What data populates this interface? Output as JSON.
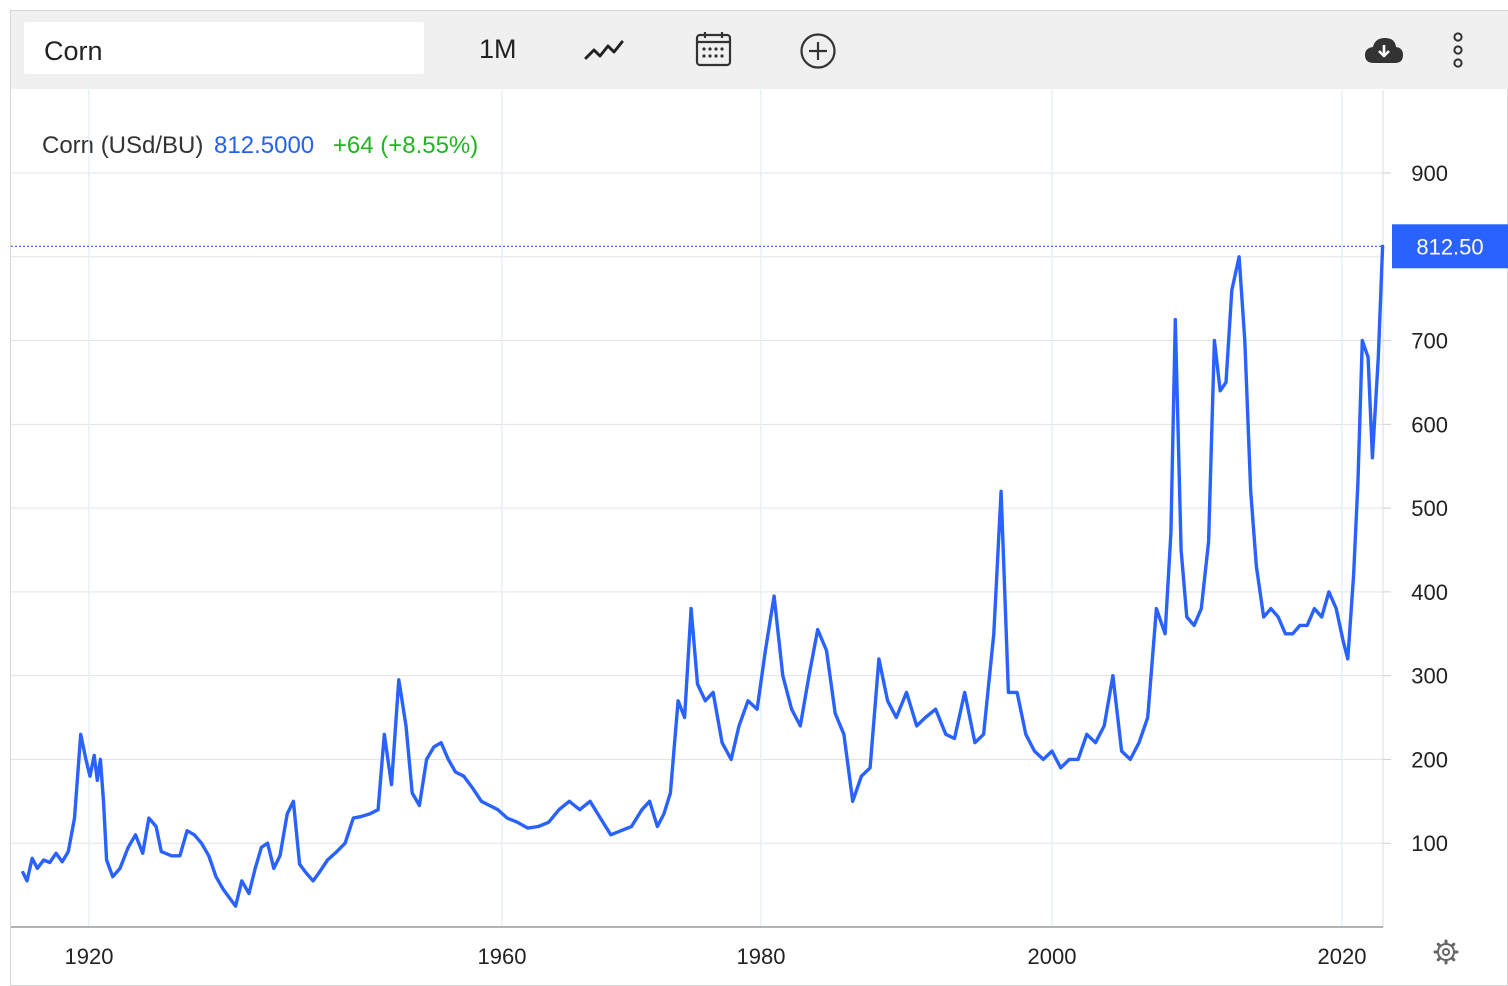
{
  "toolbar": {
    "symbol": "Corn",
    "period": "1M",
    "icons": [
      "line-chart-icon",
      "calendar-icon",
      "plus-circle-icon",
      "cloud-download-icon",
      "more-vertical-icon"
    ]
  },
  "legend": {
    "name": "Corn (USd/BU)",
    "price": "812.5000",
    "change": "+64 (+8.55%)"
  },
  "colors": {
    "line": "#2962ff",
    "change_positive": "#22b521",
    "price_badge": "#2962ff"
  },
  "chart_data": {
    "type": "line",
    "title": "",
    "xlabel": "",
    "ylabel": "",
    "x_ticks": [
      "1920",
      "1960",
      "1980",
      "2000",
      "2020"
    ],
    "y_ticks": [
      "100",
      "200",
      "300",
      "400",
      "500",
      "600",
      "700",
      "900"
    ],
    "last_price_label": "812.50",
    "last_price": 812.5,
    "grid": true,
    "series": [
      {
        "points": [
          [
            1913.6,
            65
          ],
          [
            1914.0,
            55
          ],
          [
            1914.5,
            82
          ],
          [
            1915.0,
            70
          ],
          [
            1915.6,
            80
          ],
          [
            1916.2,
            77
          ],
          [
            1916.8,
            88
          ],
          [
            1917.4,
            78
          ],
          [
            1918.0,
            90
          ],
          [
            1918.6,
            130
          ],
          [
            1919.2,
            230
          ],
          [
            1919.7,
            200
          ],
          [
            1920.1,
            180
          ],
          [
            1920.5,
            205
          ],
          [
            1920.8,
            175
          ],
          [
            1921.1,
            200
          ],
          [
            1921.4,
            150
          ],
          [
            1921.7,
            80
          ],
          [
            1922.3,
            60
          ],
          [
            1923.0,
            70
          ],
          [
            1923.8,
            95
          ],
          [
            1924.5,
            110
          ],
          [
            1925.2,
            88
          ],
          [
            1925.8,
            130
          ],
          [
            1926.5,
            120
          ],
          [
            1927.0,
            90
          ],
          [
            1928.0,
            85
          ],
          [
            1928.8,
            85
          ],
          [
            1929.5,
            115
          ],
          [
            1930.2,
            110
          ],
          [
            1930.9,
            100
          ],
          [
            1931.6,
            85
          ],
          [
            1932.3,
            60
          ],
          [
            1933.0,
            45
          ],
          [
            1933.6,
            35
          ],
          [
            1934.2,
            25
          ],
          [
            1934.8,
            55
          ],
          [
            1935.5,
            40
          ],
          [
            1936.1,
            70
          ],
          [
            1936.7,
            95
          ],
          [
            1937.3,
            100
          ],
          [
            1937.9,
            70
          ],
          [
            1938.5,
            85
          ],
          [
            1939.2,
            135
          ],
          [
            1939.8,
            150
          ],
          [
            1940.4,
            75
          ],
          [
            1941.0,
            65
          ],
          [
            1941.7,
            55
          ],
          [
            1942.3,
            65
          ],
          [
            1943.1,
            80
          ],
          [
            1944.0,
            90
          ],
          [
            1944.8,
            100
          ],
          [
            1945.6,
            130
          ],
          [
            1946.4,
            132
          ],
          [
            1947.2,
            135
          ],
          [
            1948.0,
            140
          ],
          [
            1948.6,
            230
          ],
          [
            1949.3,
            170
          ],
          [
            1950.0,
            295
          ],
          [
            1950.7,
            240
          ],
          [
            1951.3,
            160
          ],
          [
            1952.0,
            145
          ],
          [
            1952.7,
            200
          ],
          [
            1953.4,
            215
          ],
          [
            1954.1,
            220
          ],
          [
            1954.8,
            200
          ],
          [
            1955.5,
            185
          ],
          [
            1956.3,
            180
          ],
          [
            1957.2,
            165
          ],
          [
            1958.0,
            150
          ],
          [
            1958.8,
            145
          ],
          [
            1959.6,
            140
          ],
          [
            1960.4,
            130
          ],
          [
            1961.2,
            125
          ],
          [
            1962.0,
            118
          ],
          [
            1962.8,
            120
          ],
          [
            1963.6,
            125
          ],
          [
            1964.4,
            140
          ],
          [
            1965.2,
            150
          ],
          [
            1966.0,
            140
          ],
          [
            1966.8,
            150
          ],
          [
            1967.6,
            130
          ],
          [
            1968.4,
            110
          ],
          [
            1969.2,
            115
          ],
          [
            1970.0,
            120
          ],
          [
            1970.8,
            140
          ],
          [
            1971.4,
            150
          ],
          [
            1972.0,
            120
          ],
          [
            1972.5,
            135
          ],
          [
            1973.0,
            160
          ],
          [
            1973.6,
            270
          ],
          [
            1974.1,
            250
          ],
          [
            1974.6,
            380
          ],
          [
            1975.1,
            290
          ],
          [
            1975.7,
            270
          ],
          [
            1976.3,
            280
          ],
          [
            1977.0,
            220
          ],
          [
            1977.7,
            200
          ],
          [
            1978.3,
            240
          ],
          [
            1979.0,
            270
          ],
          [
            1979.7,
            260
          ],
          [
            1980.3,
            330
          ],
          [
            1980.9,
            395
          ],
          [
            1981.5,
            300
          ],
          [
            1982.1,
            260
          ],
          [
            1982.7,
            240
          ],
          [
            1983.3,
            300
          ],
          [
            1983.9,
            355
          ],
          [
            1984.5,
            330
          ],
          [
            1985.1,
            255
          ],
          [
            1985.7,
            230
          ],
          [
            1986.3,
            150
          ],
          [
            1986.9,
            180
          ],
          [
            1987.5,
            190
          ],
          [
            1988.1,
            320
          ],
          [
            1988.7,
            270
          ],
          [
            1989.3,
            250
          ],
          [
            1990.0,
            280
          ],
          [
            1990.7,
            240
          ],
          [
            1991.3,
            250
          ],
          [
            1992.0,
            260
          ],
          [
            1992.7,
            230
          ],
          [
            1993.3,
            225
          ],
          [
            1994.0,
            280
          ],
          [
            1994.7,
            220
          ],
          [
            1995.3,
            230
          ],
          [
            1996.0,
            350
          ],
          [
            1996.5,
            520
          ],
          [
            1997.0,
            280
          ],
          [
            1997.6,
            280
          ],
          [
            1998.2,
            230
          ],
          [
            1998.8,
            210
          ],
          [
            1999.4,
            200
          ],
          [
            2000.0,
            210
          ],
          [
            2000.6,
            190
          ],
          [
            2001.2,
            200
          ],
          [
            2001.8,
            200
          ],
          [
            2002.4,
            230
          ],
          [
            2003.0,
            220
          ],
          [
            2003.6,
            240
          ],
          [
            2004.2,
            300
          ],
          [
            2004.8,
            210
          ],
          [
            2005.4,
            200
          ],
          [
            2006.0,
            220
          ],
          [
            2006.6,
            250
          ],
          [
            2007.2,
            380
          ],
          [
            2007.8,
            350
          ],
          [
            2008.2,
            470
          ],
          [
            2008.5,
            725
          ],
          [
            2008.9,
            450
          ],
          [
            2009.3,
            370
          ],
          [
            2009.8,
            360
          ],
          [
            2010.3,
            380
          ],
          [
            2010.8,
            460
          ],
          [
            2011.2,
            700
          ],
          [
            2011.6,
            640
          ],
          [
            2012.0,
            650
          ],
          [
            2012.4,
            760
          ],
          [
            2012.9,
            800
          ],
          [
            2013.3,
            700
          ],
          [
            2013.7,
            520
          ],
          [
            2014.1,
            430
          ],
          [
            2014.6,
            370
          ],
          [
            2015.1,
            380
          ],
          [
            2015.6,
            370
          ],
          [
            2016.1,
            350
          ],
          [
            2016.6,
            350
          ],
          [
            2017.1,
            360
          ],
          [
            2017.6,
            360
          ],
          [
            2018.1,
            380
          ],
          [
            2018.6,
            370
          ],
          [
            2019.1,
            400
          ],
          [
            2019.6,
            380
          ],
          [
            2020.1,
            340
          ],
          [
            2020.4,
            320
          ],
          [
            2020.8,
            420
          ],
          [
            2021.1,
            530
          ],
          [
            2021.4,
            700
          ],
          [
            2021.8,
            680
          ],
          [
            2022.1,
            560
          ],
          [
            2022.5,
            680
          ],
          [
            2022.8,
            812.5
          ]
        ]
      }
    ]
  }
}
